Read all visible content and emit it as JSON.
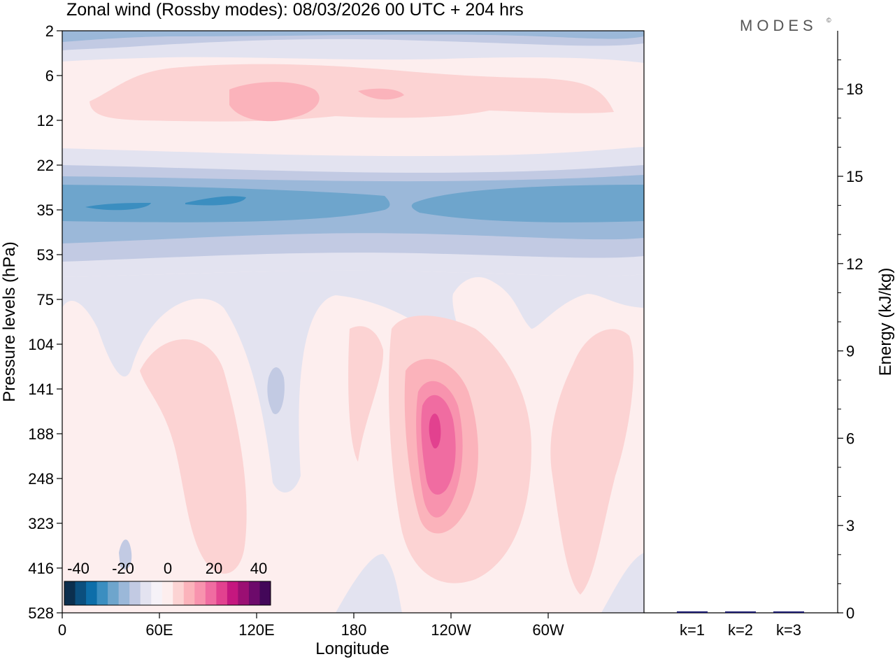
{
  "chart_data": [
    {
      "type": "heatmap",
      "title": "Zonal wind (Rossby modes):  08/03/2026  00 UTC  + 204 hrs",
      "xlabel": "Longitude",
      "ylabel": "Pressure levels (hPa)",
      "x_ticks": [
        "0",
        "60E",
        "120E",
        "180",
        "120W",
        "60W"
      ],
      "y_ticks": [
        "2",
        "6",
        "12",
        "22",
        "35",
        "53",
        "75",
        "104",
        "141",
        "188",
        "248",
        "323",
        "416",
        "528"
      ],
      "colorbar": {
        "labels": [
          "-40",
          "-20",
          "0",
          "20",
          "40"
        ],
        "colors": [
          "#0b2f4e",
          "#0b4f7e",
          "#0d6ea9",
          "#3b8ec0",
          "#6ea5cc",
          "#9bb8d9",
          "#c2cae3",
          "#e3e3f0",
          "#f6f2f8",
          "#fdeeee",
          "#fcd3d3",
          "#fbb3bb",
          "#f893ae",
          "#f06ca1",
          "#e2418f",
          "#c5177f",
          "#9b0f73",
          "#6d0a6b",
          "#430759"
        ]
      },
      "fields": {
        "background": "#fdeeee",
        "light_blue": "#e3e3f0",
        "mid_blue": "#c2cae3",
        "blue3": "#9bb8d9",
        "blue4": "#6ea5cc",
        "blue5": "#3b8ec0",
        "pink1": "#fcd3d3",
        "pink2": "#fbb3bb",
        "pink3": "#f893ae",
        "pink4": "#f06ca1",
        "pink5": "#e2418f"
      }
    },
    {
      "type": "bar",
      "categories": [
        "k=1",
        "k=2",
        "k=3"
      ],
      "values": [
        0.05,
        0.04,
        0.02
      ],
      "ylabel": "Energy (kJ/kg)",
      "ylim": [
        0,
        20
      ],
      "y_ticks": [
        0,
        3,
        6,
        9,
        12,
        15,
        18
      ],
      "bar_colors": [
        "#1a1a6e",
        "#1a1a6e",
        "#1a1a6e"
      ]
    }
  ],
  "logo": "MODES"
}
